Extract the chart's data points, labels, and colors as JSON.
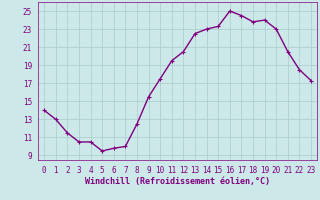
{
  "x": [
    0,
    1,
    2,
    3,
    4,
    5,
    6,
    7,
    8,
    9,
    10,
    11,
    12,
    13,
    14,
    15,
    16,
    17,
    18,
    19,
    20,
    21,
    22,
    23
  ],
  "y": [
    14.0,
    13.0,
    11.5,
    10.5,
    10.5,
    9.5,
    9.8,
    10.0,
    12.5,
    15.5,
    17.5,
    19.5,
    20.5,
    22.5,
    23.0,
    23.3,
    25.0,
    24.5,
    23.8,
    24.0,
    23.0,
    20.5,
    18.5,
    17.3
  ],
  "line_color": "#800080",
  "marker": "+",
  "marker_color": "#800080",
  "bg_color": "#cce8e8",
  "grid_color": "#aacccc",
  "xlabel": "Windchill (Refroidissement éolien,°C)",
  "xlabel_color": "#800080",
  "tick_color": "#800080",
  "spine_color": "#800080",
  "ylim": [
    8.5,
    26
  ],
  "xlim": [
    -0.5,
    23.5
  ],
  "yticks": [
    9,
    11,
    13,
    15,
    17,
    19,
    21,
    23,
    25
  ],
  "xticks": [
    0,
    1,
    2,
    3,
    4,
    5,
    6,
    7,
    8,
    9,
    10,
    11,
    12,
    13,
    14,
    15,
    16,
    17,
    18,
    19,
    20,
    21,
    22,
    23
  ],
  "linewidth": 1.0,
  "markersize": 3,
  "tick_fontsize": 5.5,
  "xlabel_fontsize": 6.0
}
